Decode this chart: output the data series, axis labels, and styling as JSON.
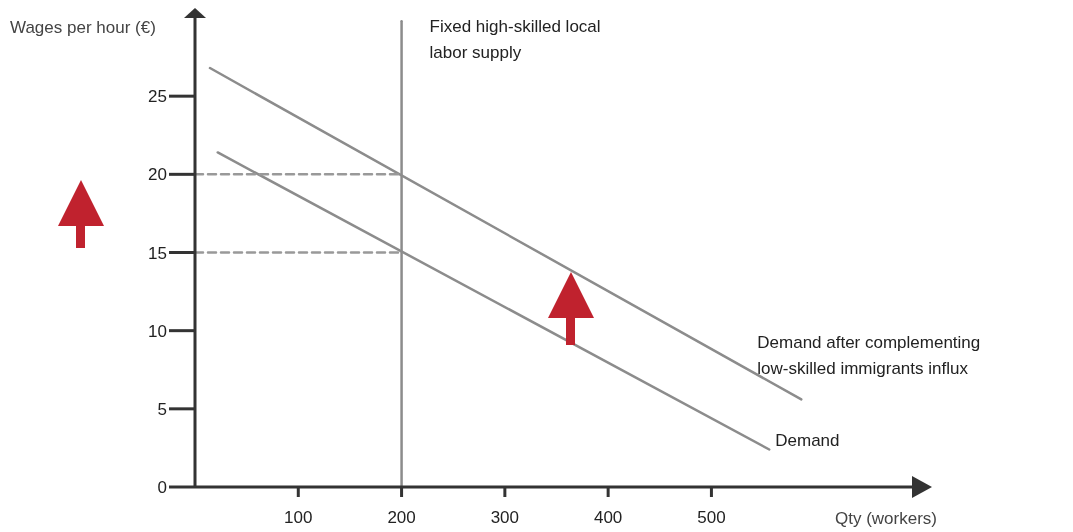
{
  "chart_data": {
    "type": "line",
    "xlabel": "Qty (workers)",
    "ylabel": "Wages per hour (€)",
    "xlim": [
      0,
      700
    ],
    "ylim": [
      0,
      30
    ],
    "xticks": [
      100,
      200,
      300,
      400,
      500
    ],
    "yticks": [
      0,
      5,
      10,
      15,
      20,
      25
    ],
    "grid": false,
    "legend": false,
    "marker": "none",
    "series": [
      {
        "name": "Fixed high-skilled local labor supply",
        "color": "#8c8c8c",
        "x": [
          200,
          200
        ],
        "values": [
          0,
          29.8
        ]
      },
      {
        "name": "Demand after complementing low-skilled immigrants influx",
        "color": "#8c8c8c",
        "x": [
          14.5,
          587
        ],
        "values": [
          26.8,
          5.6
        ]
      },
      {
        "name": "Demand",
        "color": "#8c8c8c",
        "x": [
          22,
          556
        ],
        "values": [
          21.4,
          2.4
        ]
      },
      {
        "color": "#999999",
        "line_style": "dashed",
        "x": [
          0,
          200
        ],
        "values": [
          20,
          20
        ]
      },
      {
        "color": "#999999",
        "line_style": "dashed",
        "x": [
          0,
          200
        ],
        "values": [
          15,
          15
        ]
      }
    ]
  }
}
